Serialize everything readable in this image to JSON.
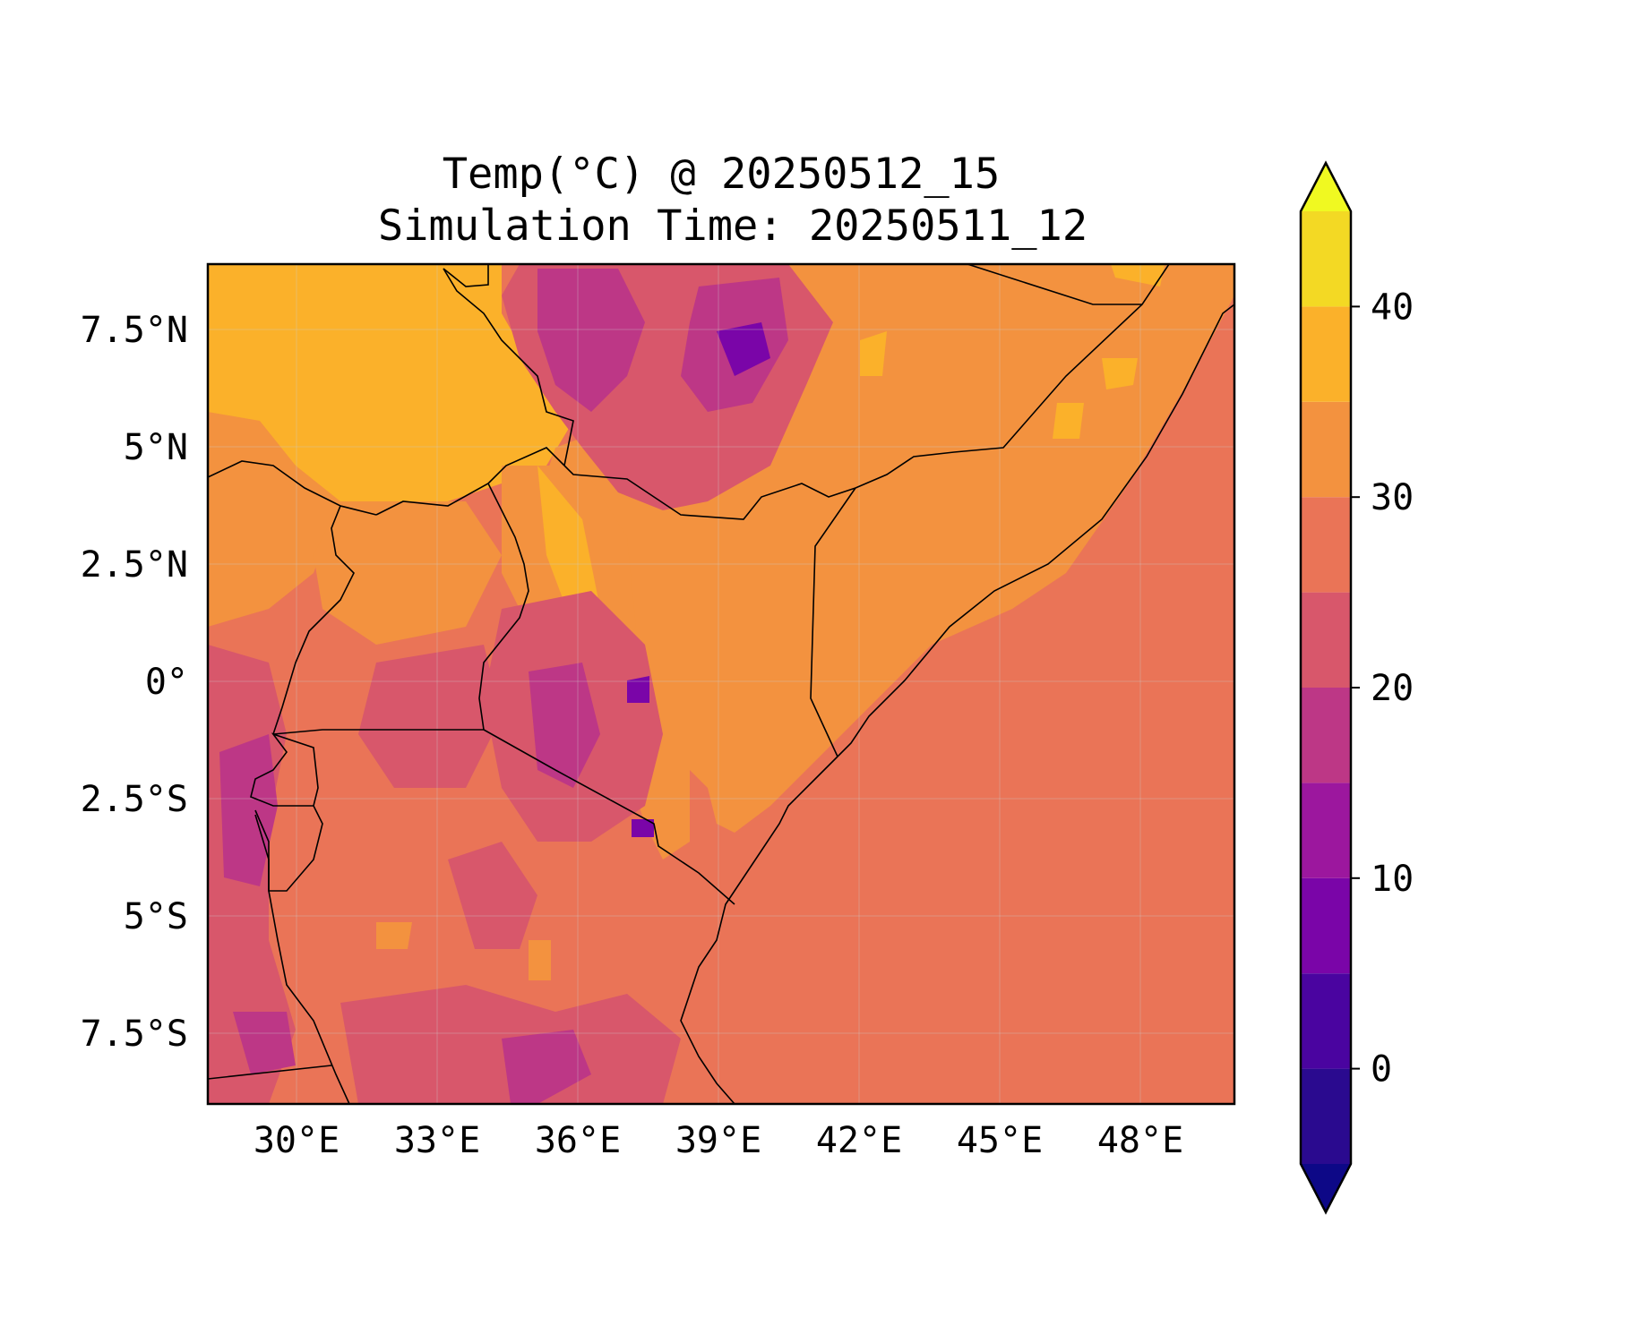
{
  "title_line1": "Temp(°C) @ 20250512_15",
  "title_line2": "Simulation Time: 20250511_12",
  "map": {
    "lon_ticks": [
      "30°E",
      "33°E",
      "36°E",
      "39°E",
      "42°E",
      "45°E",
      "48°E"
    ],
    "lat_ticks": [
      "7.5°N",
      "5°N",
      "2.5°N",
      "0°",
      "2.5°S",
      "5°S",
      "7.5°S"
    ],
    "lon_range": [
      28.1,
      50.0
    ],
    "lat_range": [
      -9.0,
      8.9
    ],
    "gridlines": true
  },
  "colorbar": {
    "levels": [
      -5,
      0,
      5,
      10,
      15,
      20,
      25,
      30,
      35,
      40,
      45
    ],
    "colors": [
      "#2a0a8f",
      "#4a04a0",
      "#7a05a8",
      "#9c179e",
      "#bd3786",
      "#d8576b",
      "#ea7457",
      "#f3923f",
      "#fbb12a",
      "#f3d924"
    ],
    "extend_low_color": "#0d0887",
    "extend_high_color": "#f0f921",
    "tick_labels": [
      "0",
      "10",
      "20",
      "30",
      "40"
    ],
    "tick_values": [
      0,
      10,
      20,
      30,
      40
    ]
  },
  "field_colors": {
    "sea": "#ea7457",
    "hot": "#fbb12a",
    "warm": "#f3923f",
    "mild": "#d8576b",
    "cool": "#bd3786",
    "cold": "#9c179e",
    "coldest": "#7a05a8"
  }
}
